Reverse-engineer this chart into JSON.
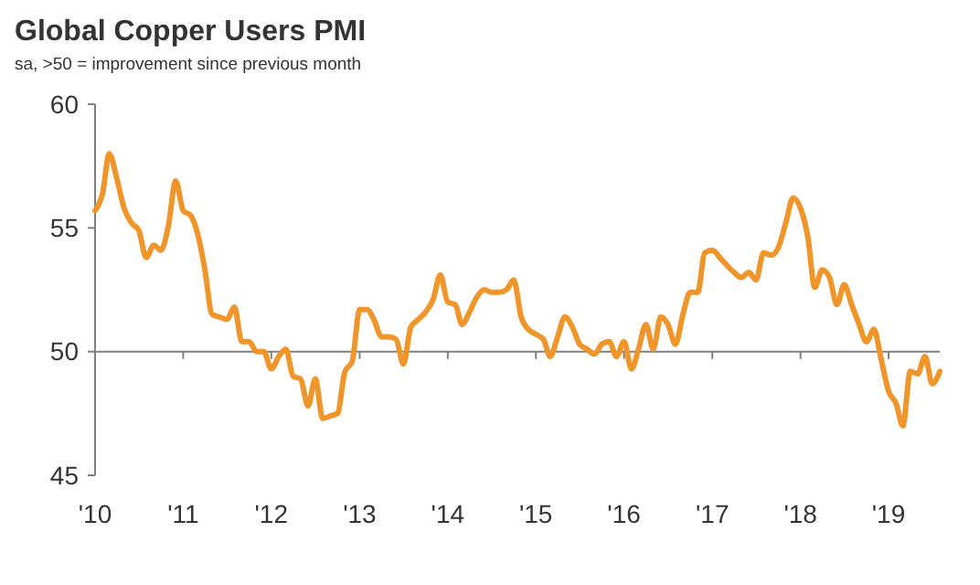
{
  "chart_data": {
    "type": "line",
    "title": "Global Copper Users PMI",
    "subtitle": "sa, >50 = improvement since previous month",
    "x": [
      "2010-01",
      "2010-02",
      "2010-03",
      "2010-04",
      "2010-05",
      "2010-06",
      "2010-07",
      "2010-08",
      "2010-09",
      "2010-10",
      "2010-11",
      "2010-12",
      "2011-01",
      "2011-02",
      "2011-03",
      "2011-04",
      "2011-05",
      "2011-06",
      "2011-07",
      "2011-08",
      "2011-09",
      "2011-10",
      "2011-11",
      "2011-12",
      "2012-01",
      "2012-02",
      "2012-03",
      "2012-04",
      "2012-05",
      "2012-06",
      "2012-07",
      "2012-08",
      "2012-09",
      "2012-10",
      "2012-11",
      "2012-12",
      "2013-01",
      "2013-02",
      "2013-03",
      "2013-04",
      "2013-05",
      "2013-06",
      "2013-07",
      "2013-08",
      "2013-09",
      "2013-10",
      "2013-11",
      "2013-12",
      "2014-01",
      "2014-02",
      "2014-03",
      "2014-04",
      "2014-05",
      "2014-06",
      "2014-07",
      "2014-08",
      "2014-09",
      "2014-10",
      "2014-11",
      "2014-12",
      "2015-01",
      "2015-02",
      "2015-03",
      "2015-04",
      "2015-05",
      "2015-06",
      "2015-07",
      "2015-08",
      "2015-09",
      "2015-10",
      "2015-11",
      "2015-12",
      "2016-01",
      "2016-02",
      "2016-03",
      "2016-04",
      "2016-05",
      "2016-06",
      "2016-07",
      "2016-08",
      "2016-09",
      "2016-10",
      "2016-11",
      "2016-12",
      "2017-01",
      "2017-02",
      "2017-03",
      "2017-04",
      "2017-05",
      "2017-06",
      "2017-07",
      "2017-08",
      "2017-09",
      "2017-10",
      "2017-11",
      "2017-12",
      "2018-01",
      "2018-02",
      "2018-03",
      "2018-04",
      "2018-05",
      "2018-06",
      "2018-07",
      "2018-08",
      "2018-09",
      "2018-10",
      "2018-11",
      "2018-12",
      "2019-01",
      "2019-02",
      "2019-03",
      "2019-04",
      "2019-05",
      "2019-06",
      "2019-07",
      "2019-08"
    ],
    "series": [
      {
        "color": "#f0952a",
        "values": [
          55.7,
          56.4,
          58.0,
          57.0,
          55.8,
          55.2,
          54.9,
          53.8,
          54.3,
          54.1,
          55.1,
          56.9,
          55.7,
          55.5,
          54.8,
          53.3,
          51.5,
          51.4,
          51.3,
          51.8,
          50.4,
          50.4,
          50.0,
          50.0,
          49.3,
          49.8,
          50.1,
          49.0,
          48.9,
          47.8,
          48.9,
          47.3,
          47.4,
          47.5,
          49.2,
          49.6,
          51.7,
          51.7,
          51.3,
          50.6,
          50.6,
          50.5,
          49.5,
          51.0,
          51.3,
          51.6,
          52.1,
          53.1,
          52.0,
          51.9,
          51.1,
          51.6,
          52.2,
          52.5,
          52.4,
          52.4,
          52.5,
          52.9,
          51.4,
          50.9,
          50.7,
          50.5,
          49.8,
          50.6,
          51.4,
          51.0,
          50.3,
          50.1,
          49.9,
          50.3,
          50.4,
          49.8,
          50.4,
          49.3,
          50.1,
          51.1,
          50.1,
          51.4,
          51.1,
          50.3,
          51.5,
          52.4,
          52.4,
          54.0,
          54.1,
          53.8,
          53.5,
          53.2,
          53.0,
          53.2,
          52.9,
          54.0,
          53.9,
          54.2,
          55.2,
          56.2,
          55.8,
          54.6,
          52.6,
          53.3,
          53.0,
          51.9,
          52.7,
          51.9,
          51.1,
          50.4,
          50.9,
          49.7,
          48.4,
          47.9,
          47.0,
          49.2,
          49.1,
          49.8,
          48.7,
          49.2
        ]
      }
    ],
    "xlim": [
      "2010-01",
      "2019-08"
    ],
    "xticks": [
      {
        "value": "2010-01",
        "label": "'10"
      },
      {
        "value": "2011-01",
        "label": "'11"
      },
      {
        "value": "2012-01",
        "label": "'12"
      },
      {
        "value": "2013-01",
        "label": "'13"
      },
      {
        "value": "2014-01",
        "label": "'14"
      },
      {
        "value": "2015-01",
        "label": "'15"
      },
      {
        "value": "2016-01",
        "label": "'16"
      },
      {
        "value": "2017-01",
        "label": "'17"
      },
      {
        "value": "2018-01",
        "label": "'18"
      },
      {
        "value": "2019-01",
        "label": "'19"
      }
    ],
    "ylim": [
      45,
      60
    ],
    "yticks": [
      45,
      50,
      55,
      60
    ],
    "ref_lines": [
      {
        "axis": "y",
        "value": 50,
        "color": "#7f7f7f"
      }
    ],
    "grid": false
  }
}
